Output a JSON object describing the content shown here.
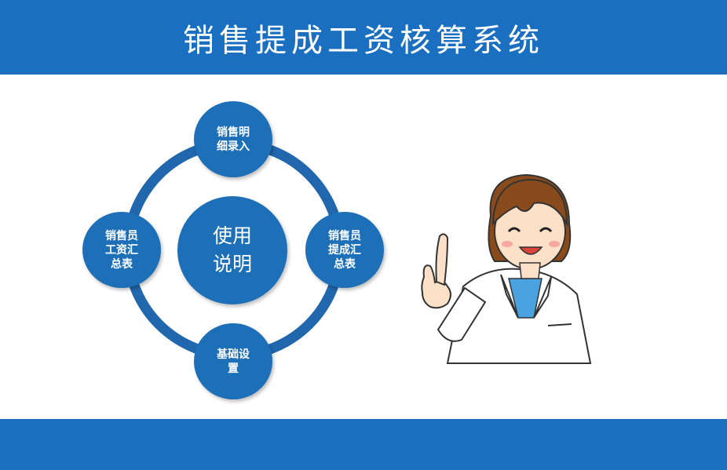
{
  "header": {
    "title": "销售提成工资核算系统"
  },
  "diagram": {
    "center_label": "使用\n说明",
    "nodes": [
      {
        "id": "sales-detail-entry",
        "label": "销售明\n细录入"
      },
      {
        "id": "sales-commission-summary",
        "label": "销售员\n提成汇\n总表"
      },
      {
        "id": "basic-settings",
        "label": "基础设\n置"
      },
      {
        "id": "sales-salary-summary",
        "label": "销售员\n工资汇\n总表"
      }
    ]
  },
  "colors": {
    "primary_blue": "#1a6fc0",
    "node_blue": "#1d6fb8",
    "ring_blue": "#2167ad",
    "background": "#ffffff"
  },
  "mascot": {
    "icon": "doctor-pointing-icon"
  }
}
